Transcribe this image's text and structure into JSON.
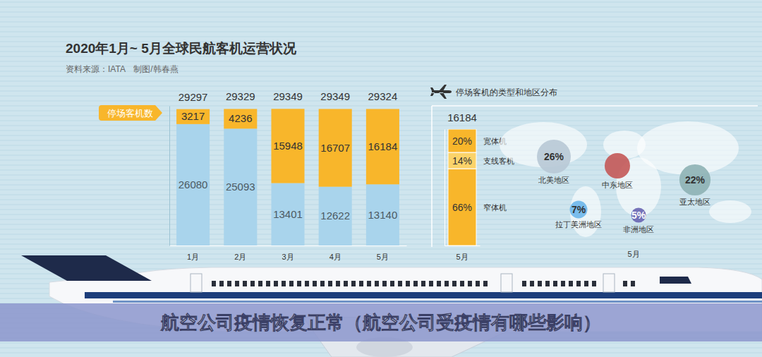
{
  "banner": "航空公司疫情恢复正常（航空公司受疫情有哪些影响）",
  "chart_data": [
    {
      "type": "bar",
      "stacked": true,
      "title": "2020年1月~ 5月全球民航客机运营状况",
      "subtitle": "资料来源：IATA　制图/韩春燕",
      "categories": [
        "1月",
        "2月",
        "3月",
        "4月",
        "5月"
      ],
      "series": [
        {
          "name": "停场客机数",
          "color": "#f8b62b",
          "values": [
            3217,
            4236,
            15948,
            16707,
            16184
          ]
        },
        {
          "color": "#a9d4ec",
          "values": [
            26080,
            25093,
            13401,
            12622,
            13140
          ]
        }
      ],
      "totals": [
        29297,
        29329,
        29349,
        29349,
        29324
      ],
      "ylim": [
        0,
        30000
      ],
      "tick_labels": "x",
      "data_labels": true,
      "legend": "left"
    },
    {
      "type": "bar",
      "stacked": true,
      "title": "停场客机的类型和地区分布",
      "categories": [
        "5月"
      ],
      "totals": [
        16184
      ],
      "series": [
        {
          "name": "宽体机",
          "color": "#f8b62b",
          "values": [
            20
          ],
          "value_labels": [
            "20%"
          ]
        },
        {
          "name": "支线客机",
          "color": "#fbd36a",
          "values": [
            14
          ],
          "value_labels": [
            "14%"
          ]
        },
        {
          "name": "窄体机",
          "color": "#f8b62b",
          "values": [
            66
          ],
          "value_labels": [
            "66%"
          ]
        }
      ],
      "ylim": [
        0,
        100
      ],
      "tick_labels": "x",
      "data_labels": true,
      "legend": "right"
    },
    {
      "type": "bubble",
      "categories": [
        "北美地区",
        "中东地区",
        "亚太地区",
        "拉丁美洲地区",
        "非洲地区"
      ],
      "values": [
        26,
        null,
        22,
        7,
        5
      ],
      "value_labels": [
        "26%",
        null,
        "22%",
        "7%",
        "5%"
      ],
      "colors": [
        "#b9c9d6",
        "#c45b5a",
        "#8fb3b5",
        "#6fb7ea",
        "#6a67b3"
      ],
      "xlabel": "5月",
      "data_labels": true
    }
  ]
}
